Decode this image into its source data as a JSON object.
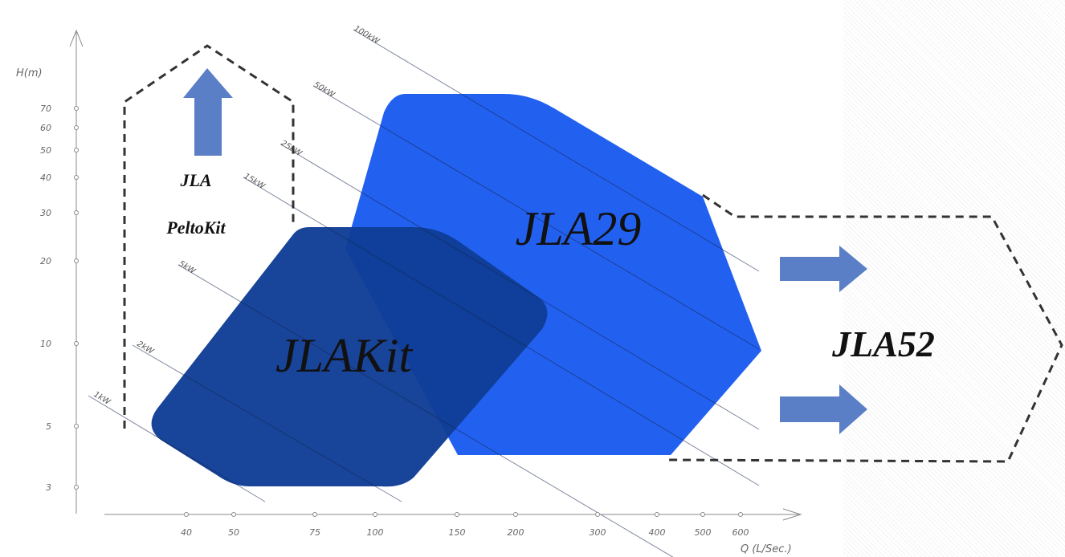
{
  "chart_data": {
    "type": "area",
    "title": "",
    "xlabel": "Q (L/Sec.)",
    "ylabel": "H(m)",
    "x_scale": "log",
    "y_scale": "log",
    "x_ticks": [
      {
        "value": 40,
        "label": "40"
      },
      {
        "value": 50,
        "label": "50"
      },
      {
        "value": 75,
        "label": "75"
      },
      {
        "value": 100,
        "label": "100"
      },
      {
        "value": 150,
        "label": "150"
      },
      {
        "value": 200,
        "label": "200"
      },
      {
        "value": 300,
        "label": "300"
      },
      {
        "value": 400,
        "label": "400"
      },
      {
        "value": 500,
        "label": "500"
      },
      {
        "value": 600,
        "label": "600"
      }
    ],
    "y_ticks": [
      {
        "value": 3,
        "label": "3"
      },
      {
        "value": 5,
        "label": "5"
      },
      {
        "value": 10,
        "label": "10"
      },
      {
        "value": 20,
        "label": "20"
      },
      {
        "value": 30,
        "label": "30"
      },
      {
        "value": 40,
        "label": "40"
      },
      {
        "value": 50,
        "label": "50"
      },
      {
        "value": 60,
        "label": "60"
      },
      {
        "value": 70,
        "label": "70"
      }
    ],
    "power_lines": [
      {
        "label": "1kW"
      },
      {
        "label": "2kW"
      },
      {
        "label": "5kW"
      },
      {
        "label": "15kW"
      },
      {
        "label": "25kW"
      },
      {
        "label": "50kW"
      },
      {
        "label": "100kW"
      }
    ],
    "regions": [
      {
        "name": "JLA29",
        "color": "#1e5ef0"
      },
      {
        "name": "JLAKit",
        "color": "#0f3d96"
      },
      {
        "name": "JLA PeltoKit",
        "label_lines": [
          "JLA",
          "PeltoKit"
        ],
        "style": "dashed-outline"
      },
      {
        "name": "JLA52",
        "style": "dashed-outline"
      }
    ],
    "arrow_color": "#5a7fc6",
    "grid": false,
    "legend": "none"
  }
}
